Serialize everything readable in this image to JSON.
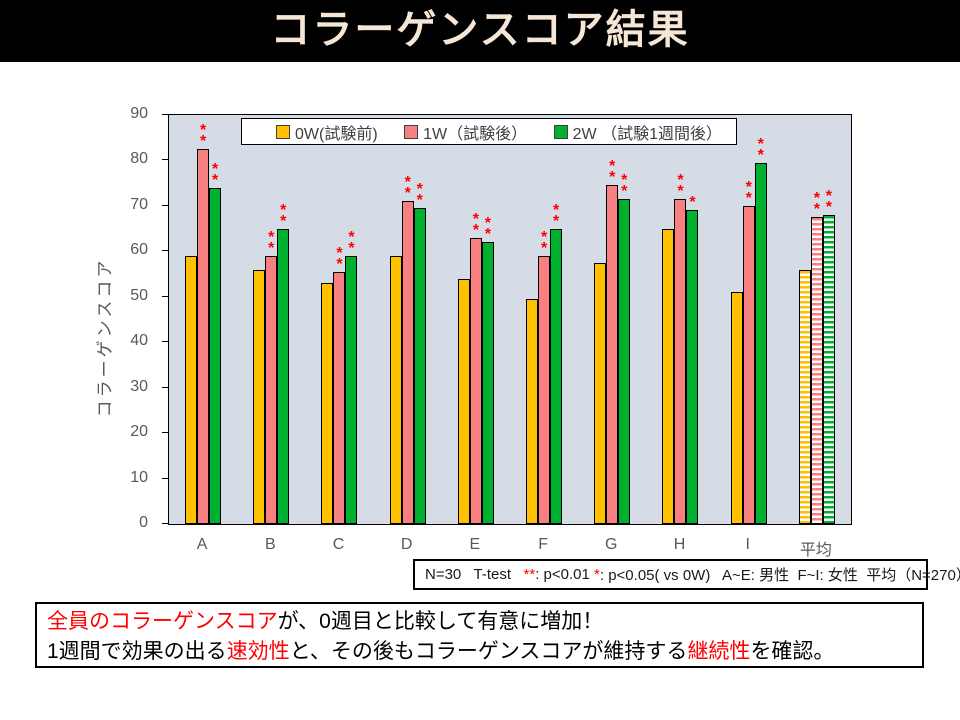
{
  "header": {
    "title": "コラーゲンスコア結果"
  },
  "chart_data": {
    "type": "bar",
    "title": "",
    "xlabel": "",
    "ylabel": "コラーゲンスコア",
    "ylim": [
      0,
      90
    ],
    "ytick_step": 10,
    "grid": false,
    "legend_position": "top-inside",
    "plot_bg_color": "#D6DCE5",
    "axis_text_color": "#595959",
    "sig_color": "#FF0000",
    "categories": [
      "A",
      "B",
      "C",
      "D",
      "E",
      "F",
      "G",
      "H",
      "I",
      "平均"
    ],
    "striped_category": "平均",
    "series": [
      {
        "name": "0W(試験前)",
        "color": "#FFC000",
        "values": [
          59,
          56,
          53,
          59,
          54,
          49.5,
          57.5,
          65,
          51,
          56
        ],
        "sig": [
          "",
          "",
          "",
          "",
          "",
          "",
          "",
          "",
          "",
          ""
        ]
      },
      {
        "name": "1W（試験後）",
        "color": "#F98080",
        "values": [
          82.5,
          59,
          55.5,
          71,
          63,
          59,
          74.5,
          71.5,
          70,
          67.5
        ],
        "sig": [
          "**",
          "**",
          "**",
          "**",
          "**",
          "**",
          "**",
          "**",
          "**",
          "**"
        ]
      },
      {
        "name": "2W （試験1週間後）",
        "color": "#00B02F",
        "values": [
          74,
          65,
          59,
          69.5,
          62,
          65,
          71.5,
          69,
          79.5,
          68
        ],
        "sig": [
          "**",
          "**",
          "**",
          "**",
          "**",
          "**",
          "**",
          "*",
          "**",
          "**"
        ]
      }
    ]
  },
  "note": {
    "parts": [
      {
        "text": "N=30   T-test   ",
        "red": false
      },
      {
        "text": "**",
        "red": true
      },
      {
        "text": ": p<0.01 ",
        "red": false
      },
      {
        "text": "*",
        "red": true
      },
      {
        "text": ": p<0.05( vs 0W)   A~E: 男性  F~I: 女性  平均（N=270）",
        "red": false
      }
    ]
  },
  "message": {
    "line1": [
      {
        "text": "全員のコラーゲンスコア",
        "red": true
      },
      {
        "text": "が、0週目と比較して有意に増加！",
        "red": false
      }
    ],
    "line2": [
      {
        "text": "1週間で効果の出る",
        "red": false
      },
      {
        "text": "速効性",
        "red": true
      },
      {
        "text": "と、その後もコラーゲンスコアが維持する",
        "red": false
      },
      {
        "text": "継続性",
        "red": true
      },
      {
        "text": "を確認。",
        "red": false
      }
    ]
  }
}
